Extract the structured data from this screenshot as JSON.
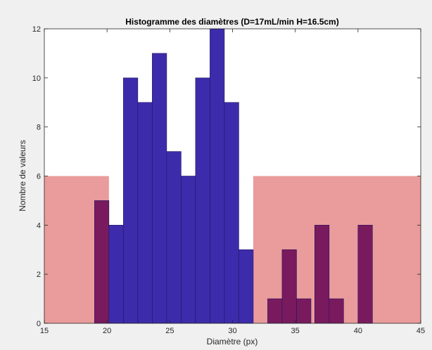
{
  "chart_data": {
    "type": "bar",
    "title": "Histogramme des diamètres (D=17mL/min H=16.5cm)",
    "xlabel": "Diamètre (px)",
    "ylabel": "Nombre de valeurs",
    "xlim": [
      15,
      45
    ],
    "ylim": [
      0,
      12
    ],
    "xticks": [
      "15",
      "20",
      "25",
      "30",
      "35",
      "40",
      "45"
    ],
    "yticks": [
      "0",
      "2",
      "4",
      "6",
      "8",
      "10",
      "12"
    ],
    "grid": false,
    "bin_width": 1.15,
    "bins": [
      {
        "start": 19.0,
        "count": 5
      },
      {
        "start": 20.15,
        "count": 4
      },
      {
        "start": 21.3,
        "count": 10
      },
      {
        "start": 22.45,
        "count": 9
      },
      {
        "start": 23.6,
        "count": 11
      },
      {
        "start": 24.75,
        "count": 7
      },
      {
        "start": 25.9,
        "count": 6
      },
      {
        "start": 27.05,
        "count": 10
      },
      {
        "start": 28.2,
        "count": 12
      },
      {
        "start": 29.35,
        "count": 9
      },
      {
        "start": 30.5,
        "count": 3
      },
      {
        "start": 32.8,
        "count": 1
      },
      {
        "start": 33.95,
        "count": 3
      },
      {
        "start": 35.1,
        "count": 1
      },
      {
        "start": 36.55,
        "count": 4
      },
      {
        "start": 37.7,
        "count": 1
      },
      {
        "start": 40.0,
        "count": 4
      }
    ],
    "shaded_regions": [
      {
        "x": [
          15,
          20.15
        ],
        "y": [
          0,
          6
        ]
      },
      {
        "x": [
          31.65,
          45
        ],
        "y": [
          0,
          6
        ]
      }
    ],
    "colors": {
      "bar": "#3c2cab",
      "bar_edge": "#1c1460",
      "bar_in_region": "#7a1a5e",
      "region": "#e89090"
    }
  }
}
